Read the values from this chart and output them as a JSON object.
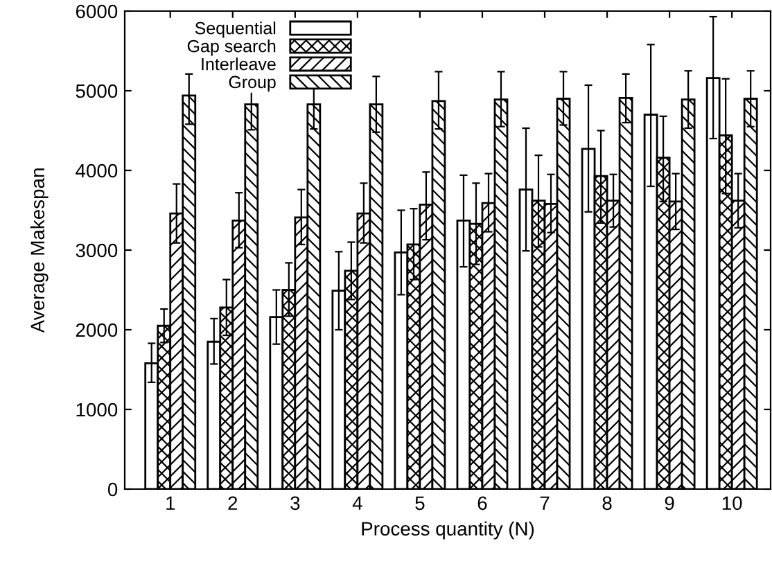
{
  "chart_data": {
    "type": "bar",
    "xlabel": "Process quantity (N)",
    "ylabel": "Average Makespan",
    "categories": [
      "1",
      "2",
      "3",
      "4",
      "5",
      "6",
      "7",
      "8",
      "9",
      "10"
    ],
    "series": [
      {
        "name": "Sequential",
        "color": "#ffffff",
        "values": [
          1580,
          1850,
          2160,
          2490,
          2970,
          3370,
          3760,
          4270,
          4700,
          5160
        ],
        "errors": [
          [
            1340,
            1830
          ],
          [
            1570,
            2140
          ],
          [
            1820,
            2500
          ],
          [
            2000,
            2980
          ],
          [
            2440,
            3500
          ],
          [
            2790,
            3940
          ],
          [
            2990,
            4530
          ],
          [
            3480,
            5070
          ],
          [
            3800,
            5580
          ],
          [
            4400,
            5930
          ]
        ]
      },
      {
        "name": "Gap search",
        "color": "#000000",
        "values": [
          2050,
          2280,
          2500,
          2740,
          3070,
          3330,
          3620,
          3930,
          4160,
          4440
        ],
        "errors": [
          [
            1840,
            2260
          ],
          [
            1930,
            2630
          ],
          [
            2170,
            2840
          ],
          [
            2380,
            3100
          ],
          [
            2630,
            3520
          ],
          [
            2820,
            3840
          ],
          [
            3040,
            4190
          ],
          [
            3340,
            4500
          ],
          [
            3610,
            4680
          ],
          [
            3710,
            5150
          ]
        ]
      },
      {
        "name": "Interleave",
        "color": "#000000",
        "values": [
          3460,
          3370,
          3410,
          3460,
          3570,
          3590,
          3580,
          3620,
          3610,
          3620
        ],
        "errors": [
          [
            3090,
            3830
          ],
          [
            3030,
            3720
          ],
          [
            3070,
            3760
          ],
          [
            3090,
            3840
          ],
          [
            3130,
            3980
          ],
          [
            3230,
            3960
          ],
          [
            3220,
            3950
          ],
          [
            3290,
            3950
          ],
          [
            3260,
            3960
          ],
          [
            3280,
            3960
          ]
        ]
      },
      {
        "name": "Group",
        "color": "#000000",
        "values": [
          4940,
          4830,
          4830,
          4830,
          4870,
          4890,
          4900,
          4910,
          4890,
          4900
        ],
        "errors": [
          [
            4580,
            5210
          ],
          [
            4510,
            5150
          ],
          [
            4520,
            5130
          ],
          [
            4480,
            5180
          ],
          [
            4520,
            5240
          ],
          [
            4550,
            5240
          ],
          [
            4570,
            5240
          ],
          [
            4600,
            5210
          ],
          [
            4530,
            5250
          ],
          [
            4550,
            5250
          ]
        ]
      }
    ],
    "ylim": [
      0,
      6000
    ],
    "yticks": [
      0,
      1000,
      2000,
      3000,
      4000,
      5000,
      6000
    ],
    "grid": false,
    "legend": "top left"
  }
}
